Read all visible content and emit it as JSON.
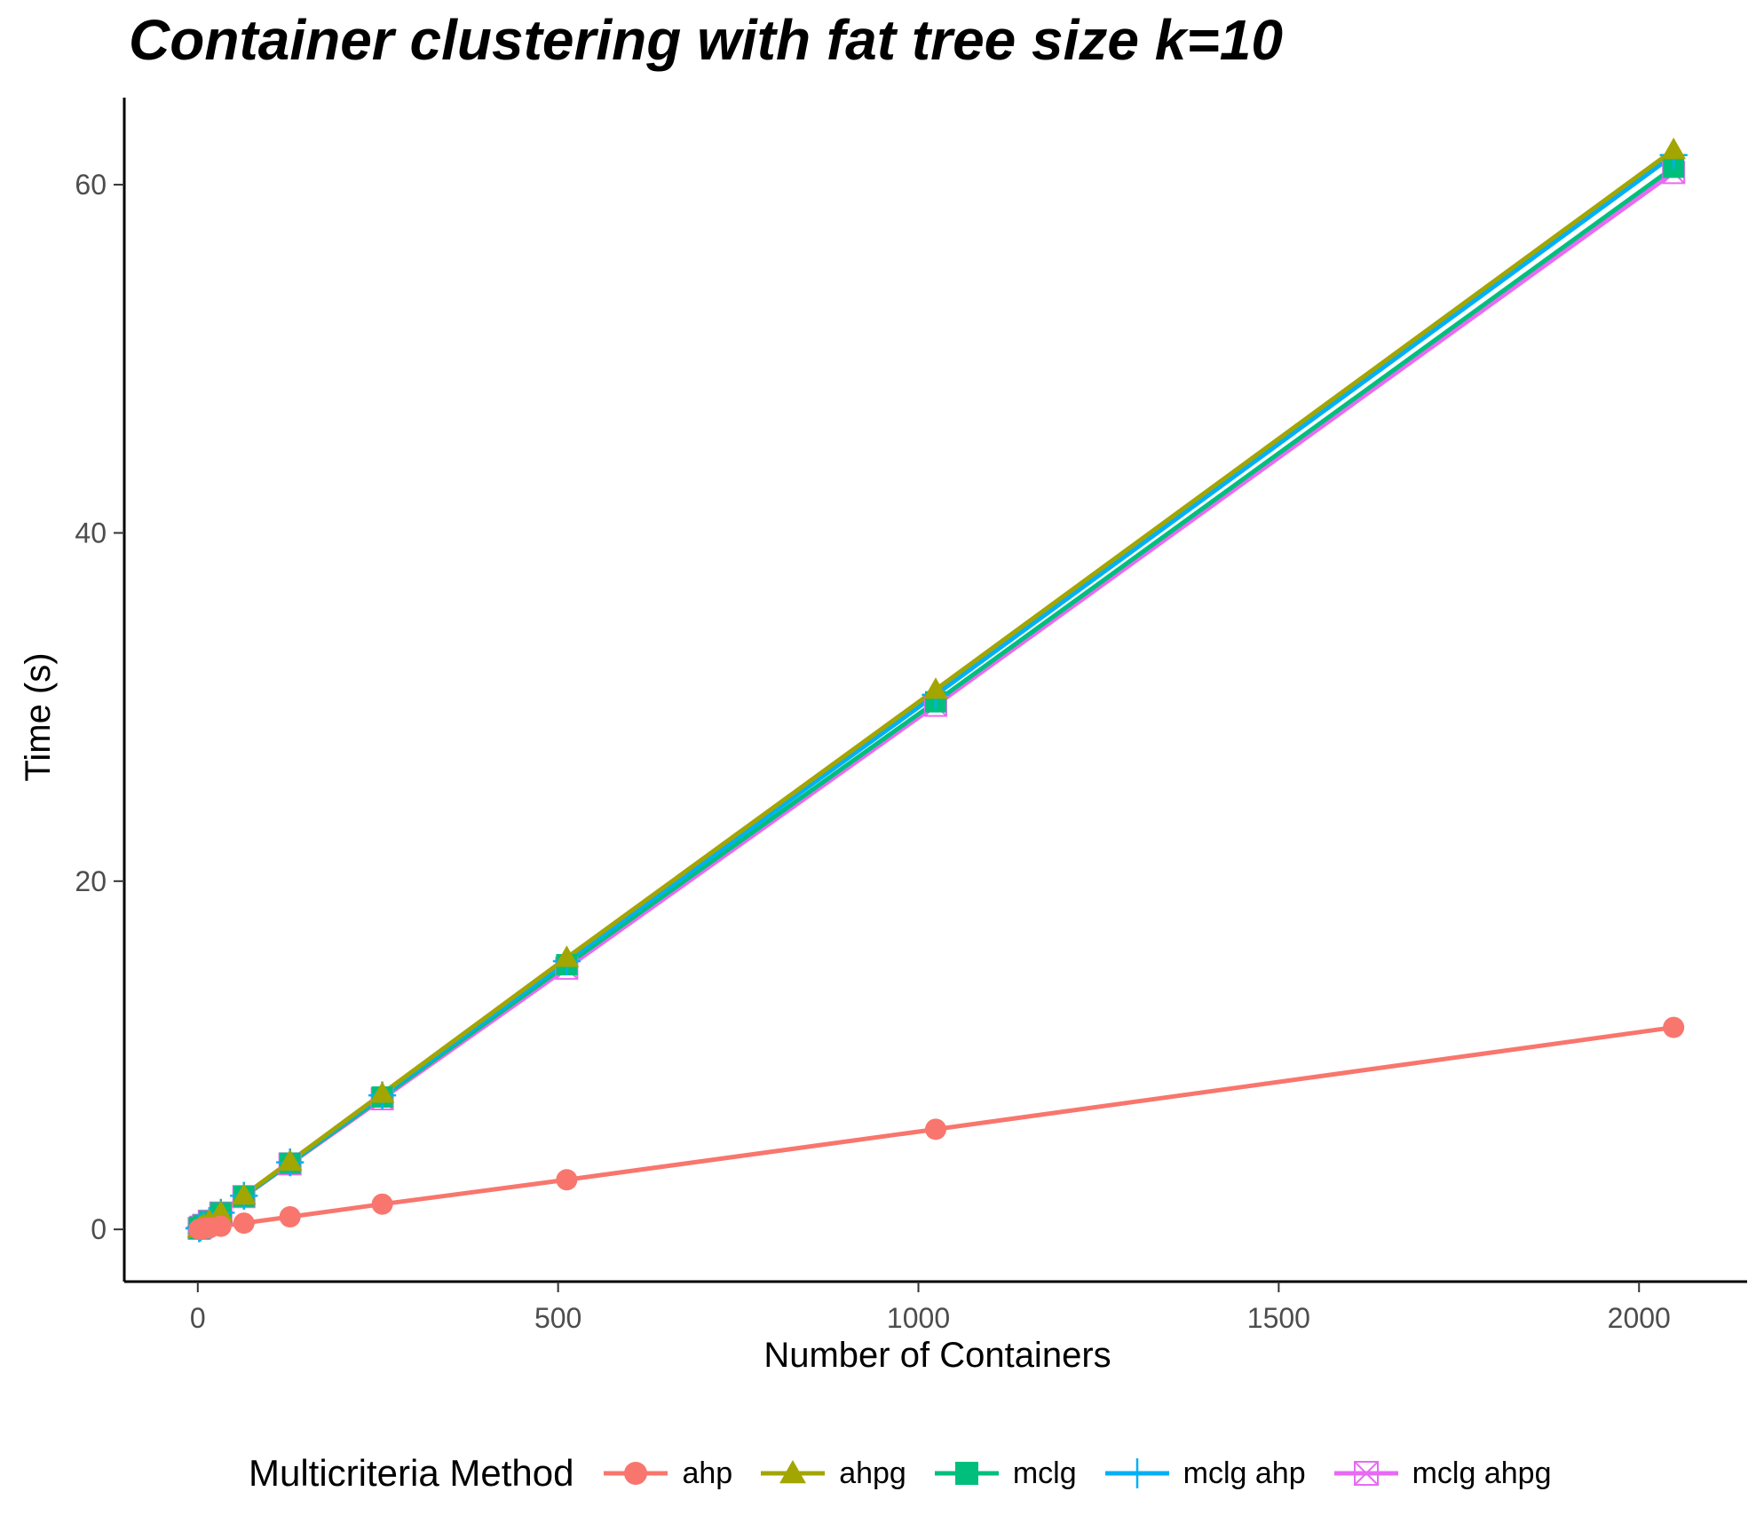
{
  "chart_data": {
    "type": "line",
    "title": "Container clustering with fat tree size k=10",
    "xlabel": "Number of Containers",
    "ylabel": "Time (s)",
    "xlim": [
      -102,
      2150
    ],
    "ylim": [
      -3,
      65
    ],
    "xticks": [
      0,
      500,
      1000,
      1500,
      2000
    ],
    "xtick_labels": [
      "0",
      "500",
      "1000",
      "1500",
      "2000"
    ],
    "yticks": [
      0,
      20,
      40,
      60
    ],
    "ytick_labels": [
      "0",
      "20",
      "40",
      "60"
    ],
    "grid": false,
    "legend_title": "Multicriteria Method",
    "legend_position": "bottom",
    "x": [
      2,
      4,
      8,
      16,
      32,
      64,
      128,
      256,
      512,
      1024,
      2048
    ],
    "series": [
      {
        "name": "ahp",
        "color": "#F8766D",
        "marker": "circle",
        "values": [
          0.01,
          0.02,
          0.05,
          0.09,
          0.18,
          0.36,
          0.72,
          1.45,
          2.85,
          5.75,
          11.6
        ]
      },
      {
        "name": "ahpg",
        "color": "#A3A500",
        "marker": "triangle",
        "values": [
          0.06,
          0.12,
          0.24,
          0.48,
          0.97,
          1.95,
          3.9,
          7.8,
          15.6,
          31.0,
          62.0
        ]
      },
      {
        "name": "mclg",
        "color": "#00BF7D",
        "marker": "square",
        "values": [
          0.06,
          0.12,
          0.24,
          0.47,
          0.95,
          1.9,
          3.8,
          7.6,
          15.2,
          30.3,
          61.0
        ]
      },
      {
        "name": "mclg ahp",
        "color": "#00B0F6",
        "marker": "plus",
        "values": [
          0.06,
          0.12,
          0.24,
          0.48,
          0.96,
          1.93,
          3.85,
          7.7,
          15.4,
          30.7,
          61.7
        ]
      },
      {
        "name": "mclg ahpg",
        "color": "#E76BF3",
        "marker": "boxx",
        "values": [
          0.06,
          0.12,
          0.23,
          0.47,
          0.94,
          1.88,
          3.76,
          7.5,
          15.0,
          30.1,
          60.7
        ]
      }
    ]
  }
}
